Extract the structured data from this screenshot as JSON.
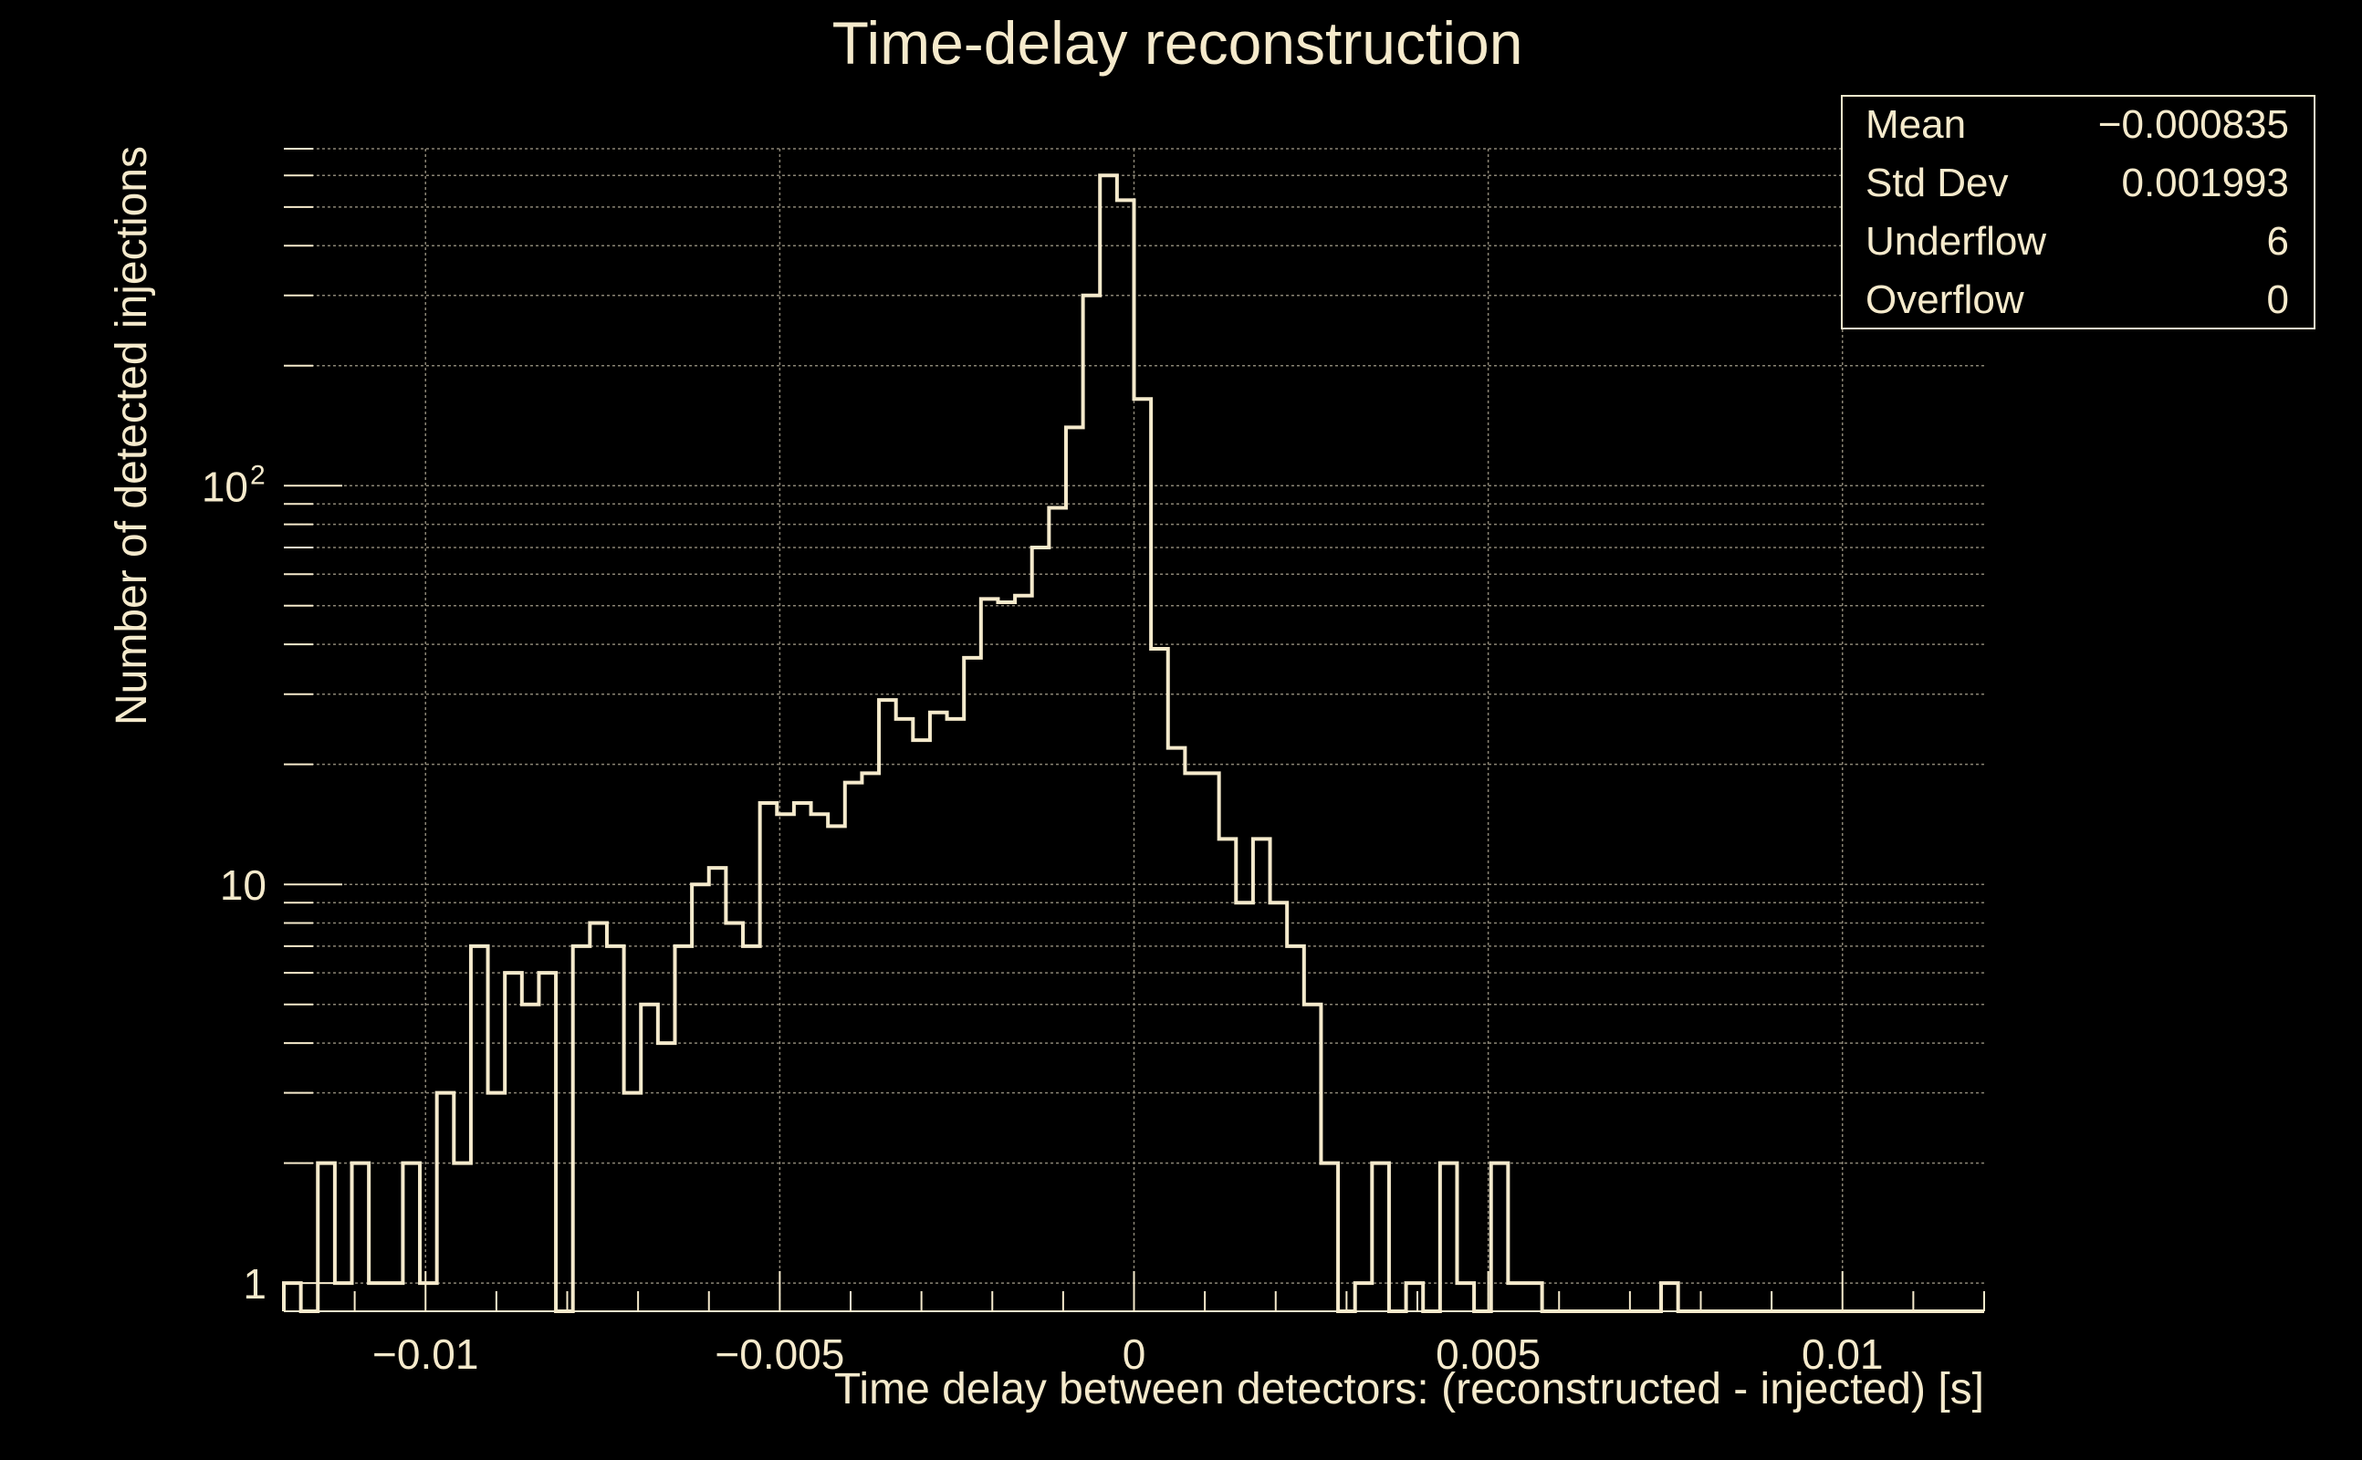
{
  "colors": {
    "background": "#000000",
    "foreground": "#F5EACC",
    "grid": "#8a8474"
  },
  "chart_data": {
    "type": "bar",
    "subtype": "step-histogram",
    "title": "Time-delay reconstruction",
    "xlabel": "Time delay between detectors: (reconstructed - injected) [s]",
    "ylabel": "Number of detected injections",
    "xlim": [
      -0.012,
      0.012
    ],
    "ylim": [
      0.85,
      700
    ],
    "yscale": "log",
    "grid": true,
    "x_ticks": [
      {
        "value": -0.01,
        "label": "−0.01"
      },
      {
        "value": -0.005,
        "label": "−0.005"
      },
      {
        "value": 0,
        "label": "0"
      },
      {
        "value": 0.005,
        "label": "0.005"
      },
      {
        "value": 0.01,
        "label": "0.01"
      }
    ],
    "y_ticks": [
      {
        "value": 1,
        "label": "1"
      },
      {
        "value": 10,
        "label": "10"
      },
      {
        "value": 100,
        "label": "10",
        "sup": "2"
      }
    ],
    "bin_width": 0.00024,
    "x_start": -0.012,
    "values": [
      1,
      0,
      2,
      1,
      2,
      1,
      1,
      2,
      1,
      3,
      2,
      7,
      3,
      6,
      5,
      6,
      0,
      7,
      8,
      7,
      3,
      5,
      4,
      7,
      10,
      11,
      8,
      7,
      16,
      15,
      16,
      15,
      14,
      18,
      19,
      29,
      26,
      23,
      27,
      26,
      37,
      52,
      51,
      53,
      70,
      88,
      140,
      300,
      600,
      520,
      165,
      39,
      22,
      19,
      19,
      13,
      9,
      13,
      9,
      7,
      5,
      2,
      0,
      1,
      2,
      0,
      1,
      0,
      2,
      1,
      0,
      2,
      1,
      1,
      0,
      0,
      0,
      0,
      0,
      0,
      0,
      1,
      0,
      0,
      0,
      0,
      0,
      0,
      0,
      0,
      0,
      0,
      0,
      0,
      0,
      0,
      0,
      0,
      0,
      0
    ],
    "stats": [
      {
        "label": "Mean",
        "value": "−0.000835"
      },
      {
        "label": "Std Dev",
        "value": "0.001993"
      },
      {
        "label": "Underflow",
        "value": "6"
      },
      {
        "label": "Overflow",
        "value": "0"
      }
    ]
  }
}
